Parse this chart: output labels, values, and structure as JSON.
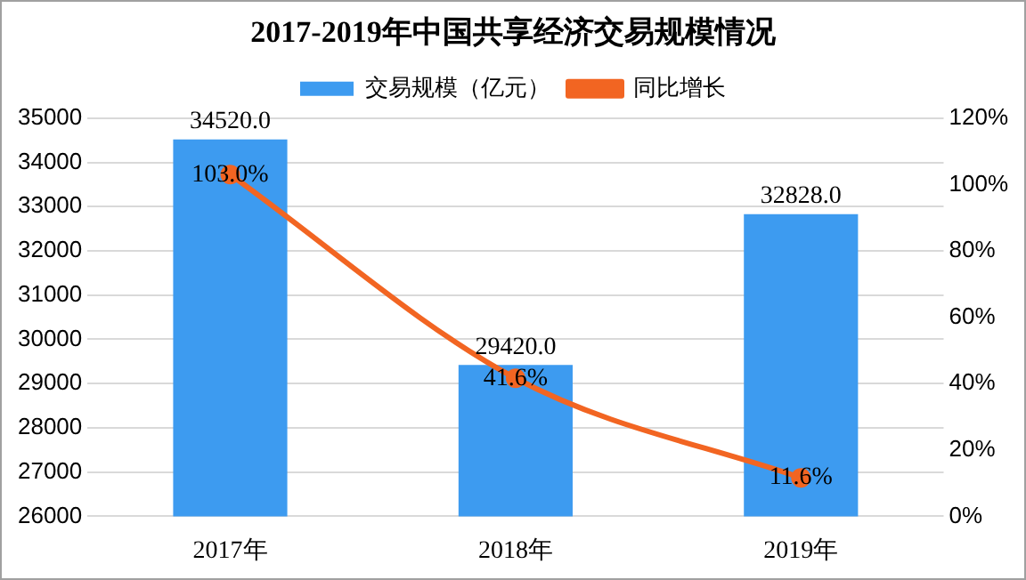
{
  "chart_data": {
    "type": "bar",
    "title": "2017-2019年中国共享经济交易规模情况",
    "categories": [
      "2017年",
      "2018年",
      "2019年"
    ],
    "series": [
      {
        "name": "交易规模（亿元）",
        "color": "#3d9bf0",
        "values": [
          34520,
          29420,
          32828
        ],
        "value_labels": [
          "34520.0",
          "29420.0",
          "32828.0"
        ]
      },
      {
        "name": "同比增长",
        "type": "line",
        "axis": "y2",
        "color": "#f26522",
        "values": [
          103.0,
          41.6,
          11.6
        ],
        "value_labels": [
          "103.0%",
          "41.6%",
          "11.6%"
        ]
      }
    ],
    "ylim": [
      26000,
      35000
    ],
    "yticks": [
      26000,
      27000,
      28000,
      29000,
      30000,
      31000,
      32000,
      33000,
      34000,
      35000
    ],
    "y2lim": [
      0,
      120
    ],
    "y2ticks": [
      {
        "value": 0,
        "label": "0%"
      },
      {
        "value": 20,
        "label": "20%"
      },
      {
        "value": 40,
        "label": "40%"
      },
      {
        "value": 60,
        "label": "60%"
      },
      {
        "value": 80,
        "label": "80%"
      },
      {
        "value": 100,
        "label": "100%"
      },
      {
        "value": 120,
        "label": "120%"
      }
    ],
    "grid": "y",
    "legend": "top",
    "marker": "circle",
    "line_style": "solid"
  }
}
